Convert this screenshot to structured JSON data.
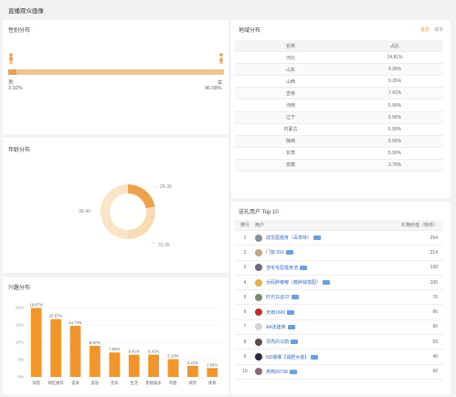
{
  "page_title": "直播观众画像",
  "gender": {
    "title": "性别分布",
    "male_label": "男",
    "male_pct": "3.92%",
    "female_label": "女",
    "female_pct": "96.08%",
    "male_fraction": 0.0392,
    "male_color": "#e9a04a",
    "female_color": "#f0c590"
  },
  "age": {
    "title": "年龄分布",
    "segments": [
      {
        "label": "25-30",
        "value": 0.22,
        "color": "#f0a24a"
      },
      {
        "label": "31-35",
        "value": 0.28,
        "color": "#f8dcb4"
      },
      {
        "label": "36-40",
        "value": 0.5,
        "color": "#fbe5c8"
      }
    ]
  },
  "region": {
    "title": "地域分布",
    "tabs": [
      "省份",
      "城市"
    ],
    "headers": [
      "名称",
      "占比"
    ],
    "rows": [
      [
        "河北",
        "14.81%"
      ],
      [
        "山东",
        "9.26%"
      ],
      [
        "山西",
        "9.26%"
      ],
      [
        "吉林",
        "7.41%"
      ],
      [
        "河南",
        "5.56%"
      ],
      [
        "辽宁",
        "5.56%"
      ],
      [
        "内蒙古",
        "5.56%"
      ],
      [
        "陕西",
        "5.56%"
      ],
      [
        "甘肃",
        "5.56%"
      ],
      [
        "安徽",
        "3.70%"
      ]
    ]
  },
  "gifts": {
    "title": "送礼用户 Top 10",
    "headers": [
      "排行",
      "用户",
      "礼物价值（快币）"
    ],
    "rows": [
      [
        "1",
        "成龙医健身（百草味）",
        "254"
      ],
      [
        "2",
        "门窗 816",
        "214"
      ],
      [
        "3",
        "浩毛毛医健身浩",
        "130"
      ],
      [
        "4",
        "大码胖嘟嘟（教胖妹搭配）",
        "100"
      ],
      [
        "5",
        "时光11@22",
        "76"
      ],
      [
        "6",
        "天雨1600",
        "66"
      ],
      [
        "7",
        "AA张建英",
        "60"
      ],
      [
        "8",
        "漂亮的马丽",
        "59"
      ],
      [
        "9",
        "ND娜娜【减肥女装】",
        "45"
      ],
      [
        "10",
        "燕燕80738",
        "42"
      ]
    ]
  },
  "interest": {
    "title": "兴趣分布",
    "chart_data": {
      "type": "bar",
      "categories": [
        "穿搭",
        "网红推荐",
        "美食",
        "美妆",
        "音乐",
        "生活",
        "影视娱乐",
        "明星",
        "搞笑",
        "体育"
      ],
      "values": [
        19.87,
        16.67,
        14.74,
        8.97,
        7.05,
        6.41,
        6.41,
        5.13,
        3.21,
        2.56
      ],
      "value_labels": [
        "19.87%",
        "16.67%",
        "14.74%",
        "8.97%",
        "7.05%",
        "6.41%",
        "6.41%",
        "5.13%",
        "3.21%",
        "2.56%"
      ],
      "ylim": [
        0,
        20
      ],
      "yticks": [
        "0%",
        "5%",
        "10%",
        "15%",
        "20%"
      ],
      "color": "#f0962a"
    }
  }
}
